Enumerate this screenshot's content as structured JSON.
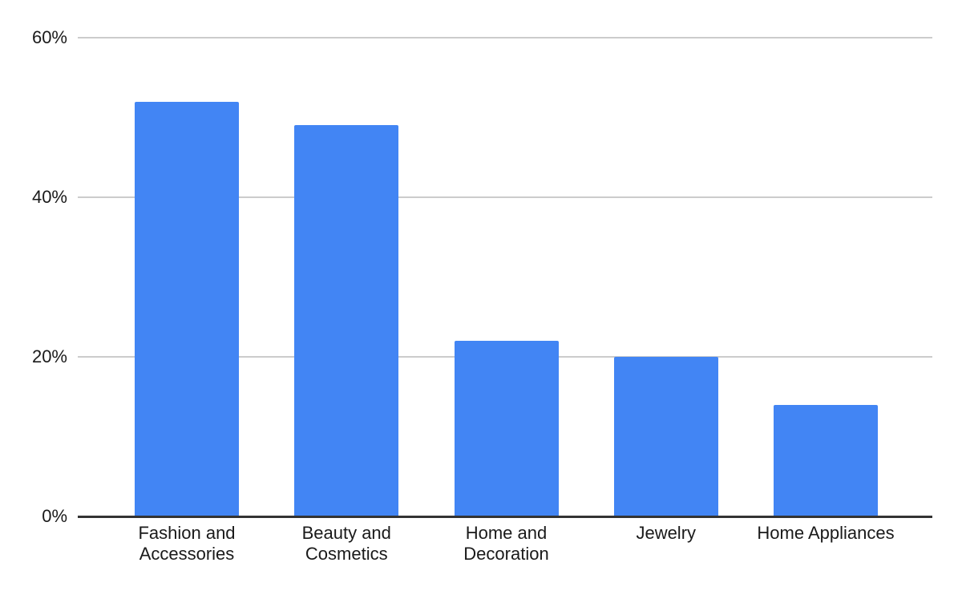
{
  "chart_data": {
    "type": "bar",
    "categories": [
      "Fashion and Accessories",
      "Beauty and Cosmetics",
      "Home and Decoration",
      "Jewelry",
      "Home Appliances"
    ],
    "category_label_lines": [
      [
        "Fashion and",
        "Accessories"
      ],
      [
        "Beauty and",
        "Cosmetics"
      ],
      [
        "Home and",
        "Decoration"
      ],
      [
        "Jewelry"
      ],
      [
        "Home Appliances"
      ]
    ],
    "values": [
      52,
      49,
      22,
      20,
      14
    ],
    "value_unit": "%",
    "ylim": [
      0,
      60
    ],
    "y_ticks": [
      0,
      20,
      40,
      60
    ],
    "y_tick_labels": [
      "0%",
      "20%",
      "40%",
      "60%"
    ],
    "grid": true,
    "legend": "none",
    "colors": {
      "bar": "#4285f4",
      "gridline": "#cccccc",
      "axis_line": "#333333",
      "text": "#1a1a1a",
      "background": "#ffffff"
    }
  }
}
